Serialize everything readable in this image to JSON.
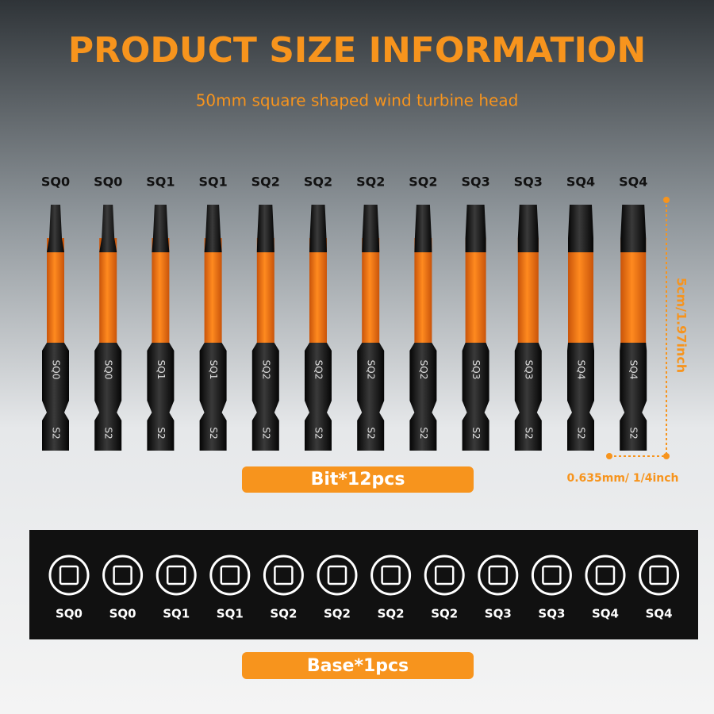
{
  "header": {
    "title": "PRODUCT SIZE INFORMATION",
    "subtitle": "50mm square shaped wind turbine head"
  },
  "bits": [
    {
      "label": "SQ0",
      "engraving": "SQ0",
      "steel": "S2"
    },
    {
      "label": "SQ0",
      "engraving": "SQ0",
      "steel": "S2"
    },
    {
      "label": "SQ1",
      "engraving": "SQ1",
      "steel": "S2"
    },
    {
      "label": "SQ1",
      "engraving": "SQ1",
      "steel": "S2"
    },
    {
      "label": "SQ2",
      "engraving": "SQ2",
      "steel": "S2"
    },
    {
      "label": "SQ2",
      "engraving": "SQ2",
      "steel": "S2"
    },
    {
      "label": "SQ2",
      "engraving": "SQ2",
      "steel": "S2"
    },
    {
      "label": "SQ2",
      "engraving": "SQ2",
      "steel": "S2"
    },
    {
      "label": "SQ3",
      "engraving": "SQ3",
      "steel": "S2"
    },
    {
      "label": "SQ3",
      "engraving": "SQ3",
      "steel": "S2"
    },
    {
      "label": "SQ4",
      "engraving": "SQ4",
      "steel": "S2"
    },
    {
      "label": "SQ4",
      "engraving": "SQ4",
      "steel": "S2"
    }
  ],
  "dimensions": {
    "length": "5cm/1.97inch",
    "width": "0.635mm/ 1/4inch"
  },
  "badges": {
    "bits": "Bit*12pcs",
    "base": "Base*1pcs"
  },
  "base": {
    "labels": [
      "SQ0",
      "SQ0",
      "SQ1",
      "SQ1",
      "SQ2",
      "SQ2",
      "SQ2",
      "SQ2",
      "SQ3",
      "SQ3",
      "SQ4",
      "SQ4"
    ]
  }
}
